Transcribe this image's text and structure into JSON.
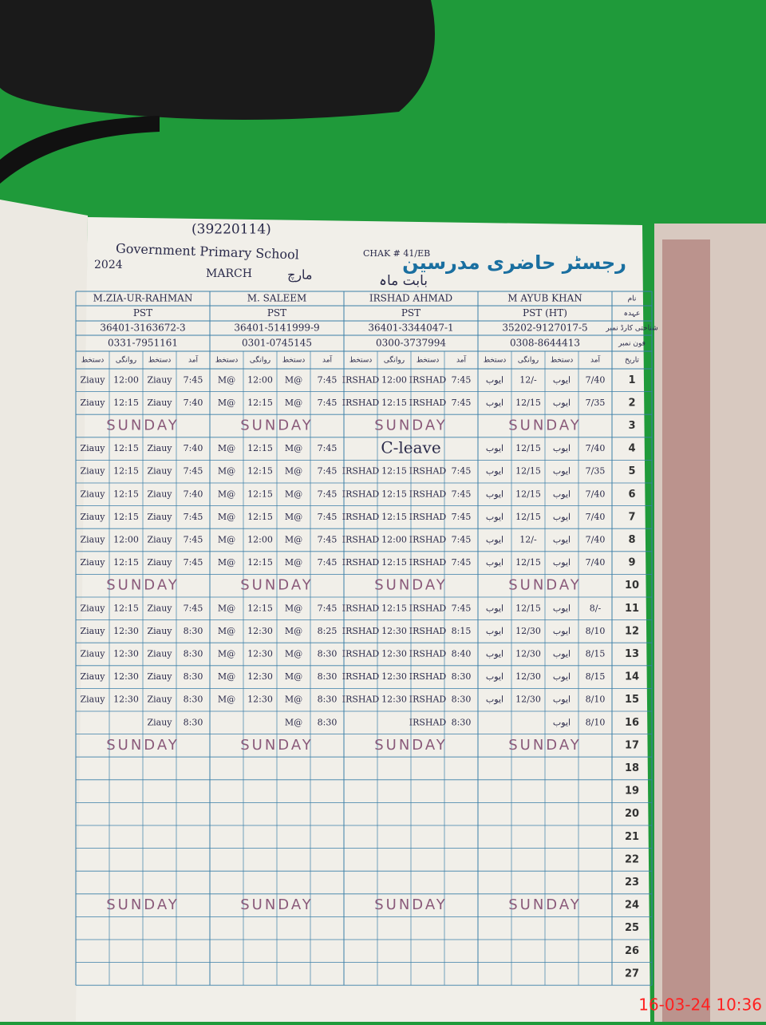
{
  "header": {
    "school_code": "(39220114)",
    "school": "Government Primary School",
    "chak": "CHAK # 41/EB",
    "title_urdu": "رجسٹر حاضری مدرسین",
    "month_label_urdu": "بابت ماہ",
    "month_urdu": "مارچ",
    "month": "MARCH",
    "year": "2024"
  },
  "row_labels": [
    "نام",
    "عہدہ",
    "شناختی کارڈ نمبر",
    "فون نمبر",
    "تاریخ"
  ],
  "column_headers": [
    "دستخط",
    "روانگی",
    "دستخط",
    "آمد"
  ],
  "teachers": [
    {
      "name": "M.ZIA-UR-RAHMAN",
      "post": "PST",
      "cnic": "36401-3163672-3",
      "phone": "0331-7951161"
    },
    {
      "name": "M. SALEEM",
      "post": "PST",
      "cnic": "36401-5141999-9",
      "phone": "0301-0745145"
    },
    {
      "name": "IRSHAD AHMAD",
      "post": "PST",
      "cnic": "36401-3344047-1",
      "phone": "0300-3737994"
    },
    {
      "name": "M AYUB KHAN",
      "post": "PST (HT)",
      "cnic": "35202-9127017-5",
      "phone": "0308-8644413"
    }
  ],
  "rows": [
    {
      "day": "1",
      "cells": [
        [
          "Ziauy",
          "12:00",
          "Ziauy",
          "7:45"
        ],
        [
          "M@",
          "12:00",
          "M@",
          "7:45"
        ],
        [
          "IRSHAD",
          "12:00",
          "IRSHAD",
          "7:45"
        ],
        [
          "ایوب",
          "12/-",
          "ایوب",
          "7/40"
        ]
      ]
    },
    {
      "day": "2",
      "cells": [
        [
          "Ziauy",
          "12:15",
          "Ziauy",
          "7:40"
        ],
        [
          "M@",
          "12:15",
          "M@",
          "7:45"
        ],
        [
          "IRSHAD",
          "12:15",
          "IRSHAD",
          "7:45"
        ],
        [
          "ایوب",
          "12/15",
          "ایوب",
          "7/35"
        ]
      ]
    },
    {
      "day": "3",
      "note": "SUNDAY"
    },
    {
      "day": "4",
      "cells": [
        [
          "Ziauy",
          "12:15",
          "Ziauy",
          "7:40"
        ],
        [
          "M@",
          "12:15",
          "M@",
          "7:45"
        ],
        [
          "C-leave"
        ],
        [
          "ایوب",
          "12/15",
          "ایوب",
          "7/40"
        ]
      ]
    },
    {
      "day": "5",
      "cells": [
        [
          "Ziauy",
          "12:15",
          "Ziauy",
          "7:45"
        ],
        [
          "M@",
          "12:15",
          "M@",
          "7:45"
        ],
        [
          "IRSHAD",
          "12:15",
          "IRSHAD",
          "7:45"
        ],
        [
          "ایوب",
          "12/15",
          "ایوب",
          "7/35"
        ]
      ]
    },
    {
      "day": "6",
      "cells": [
        [
          "Ziauy",
          "12:15",
          "Ziauy",
          "7:40"
        ],
        [
          "M@",
          "12:15",
          "M@",
          "7:45"
        ],
        [
          "IRSHAD",
          "12:15",
          "IRSHAD",
          "7:45"
        ],
        [
          "ایوب",
          "12/15",
          "ایوب",
          "7/40"
        ]
      ]
    },
    {
      "day": "7",
      "cells": [
        [
          "Ziauy",
          "12:15",
          "Ziauy",
          "7:45"
        ],
        [
          "M@",
          "12:15",
          "M@",
          "7:45"
        ],
        [
          "IRSHAD",
          "12:15",
          "IRSHAD",
          "7:45"
        ],
        [
          "ایوب",
          "12/15",
          "ایوب",
          "7/40"
        ]
      ]
    },
    {
      "day": "8",
      "cells": [
        [
          "Ziauy",
          "12:00",
          "Ziauy",
          "7:45"
        ],
        [
          "M@",
          "12:00",
          "M@",
          "7:45"
        ],
        [
          "IRSHAD",
          "12:00",
          "IRSHAD",
          "7:45"
        ],
        [
          "ایوب",
          "12/-",
          "ایوب",
          "7/40"
        ]
      ]
    },
    {
      "day": "9",
      "cells": [
        [
          "Ziauy",
          "12:15",
          "Ziauy",
          "7:45"
        ],
        [
          "M@",
          "12:15",
          "M@",
          "7:45"
        ],
        [
          "IRSHAD",
          "12:15",
          "IRSHAD",
          "7:45"
        ],
        [
          "ایوب",
          "12/15",
          "ایوب",
          "7/40"
        ]
      ]
    },
    {
      "day": "10",
      "note": "SUNDAY"
    },
    {
      "day": "11",
      "cells": [
        [
          "Ziauy",
          "12:15",
          "Ziauy",
          "7:45"
        ],
        [
          "M@",
          "12:15",
          "M@",
          "7:45"
        ],
        [
          "IRSHAD",
          "12:15",
          "IRSHAD",
          "7:45"
        ],
        [
          "ایوب",
          "12/15",
          "ایوب",
          "8/-"
        ]
      ]
    },
    {
      "day": "12",
      "cells": [
        [
          "Ziauy",
          "12:30",
          "Ziauy",
          "8:30"
        ],
        [
          "M@",
          "12:30",
          "M@",
          "8:25"
        ],
        [
          "IRSHAD",
          "12:30",
          "IRSHAD",
          "8:15"
        ],
        [
          "ایوب",
          "12/30",
          "ایوب",
          "8/10"
        ]
      ]
    },
    {
      "day": "13",
      "cells": [
        [
          "Ziauy",
          "12:30",
          "Ziauy",
          "8:30"
        ],
        [
          "M@",
          "12:30",
          "M@",
          "8:30"
        ],
        [
          "IRSHAD",
          "12:30",
          "IRSHAD",
          "8:40"
        ],
        [
          "ایوب",
          "12/30",
          "ایوب",
          "8/15"
        ]
      ]
    },
    {
      "day": "14",
      "cells": [
        [
          "Ziauy",
          "12:30",
          "Ziauy",
          "8:30"
        ],
        [
          "M@",
          "12:30",
          "M@",
          "8:30"
        ],
        [
          "IRSHAD",
          "12:30",
          "IRSHAD",
          "8:30"
        ],
        [
          "ایوب",
          "12/30",
          "ایوب",
          "8/15"
        ]
      ]
    },
    {
      "day": "15",
      "cells": [
        [
          "Ziauy",
          "12:30",
          "Ziauy",
          "8:30"
        ],
        [
          "M@",
          "12:30",
          "M@",
          "8:30"
        ],
        [
          "IRSHAD",
          "12:30",
          "IRSHAD",
          "8:30"
        ],
        [
          "ایوب",
          "12/30",
          "ایوب",
          "8/10"
        ]
      ]
    },
    {
      "day": "16",
      "cells": [
        [
          null,
          null,
          "Ziauy",
          "8:30"
        ],
        [
          null,
          null,
          "M@",
          "8:30"
        ],
        [
          null,
          null,
          "IRSHAD",
          "8:30"
        ],
        [
          null,
          null,
          "ایوب",
          "8/10"
        ]
      ]
    },
    {
      "day": "17",
      "note": "SUNDAY"
    },
    {
      "day": "18"
    },
    {
      "day": "19"
    },
    {
      "day": "20"
    },
    {
      "day": "21"
    },
    {
      "day": "22"
    },
    {
      "day": "23"
    },
    {
      "day": "24",
      "note": "SUNDAY"
    },
    {
      "day": "25"
    },
    {
      "day": "26"
    },
    {
      "day": "27"
    }
  ],
  "timestamp": "16-03-24  10:36"
}
